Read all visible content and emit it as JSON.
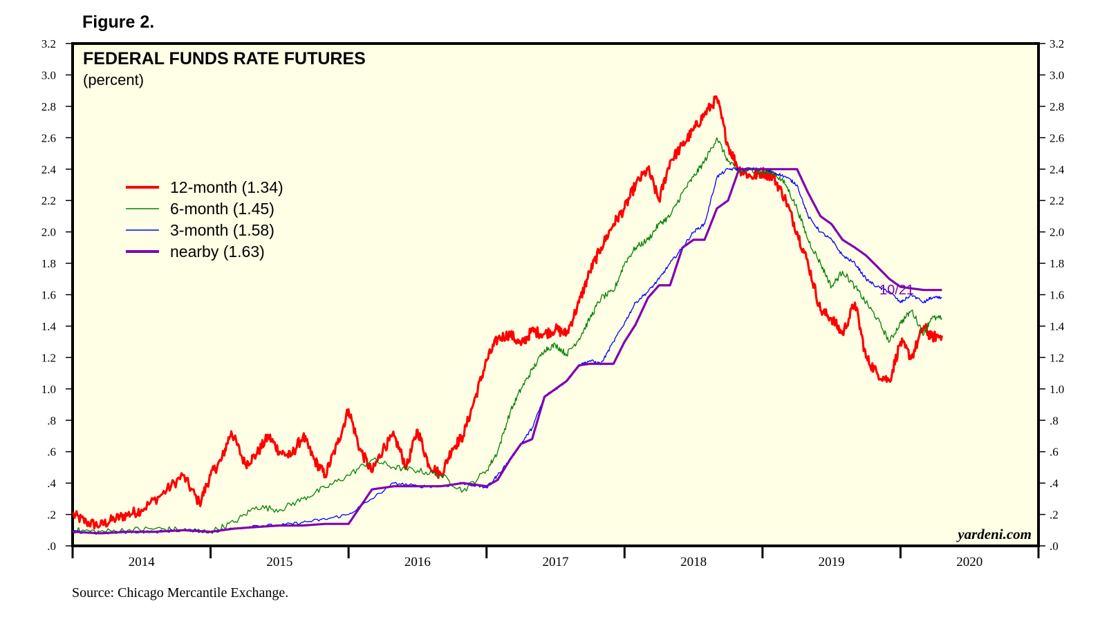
{
  "figure_label": "Figure 2.",
  "source": "Source: Chicago Mercantile Exchange.",
  "chart_data": {
    "type": "line",
    "title": "FEDERAL FUNDS RATE FUTURES",
    "subtitle": "(percent)",
    "xlabel": "",
    "ylabel": "percent",
    "ylim": [
      0,
      3.2
    ],
    "xlim": [
      2013.5,
      2020.5
    ],
    "grid": false,
    "y_ticks": [
      0,
      0.2,
      0.4,
      0.6,
      0.8,
      1.0,
      1.2,
      1.4,
      1.6,
      1.8,
      2.0,
      2.2,
      2.4,
      2.6,
      2.8,
      3.0,
      3.2
    ],
    "y_tick_labels": [
      ".0",
      ".2",
      ".4",
      ".6",
      ".8",
      "1.0",
      "1.2",
      "1.4",
      "1.6",
      "1.8",
      "2.0",
      "2.2",
      "2.4",
      "2.6",
      "2.8",
      "3.0",
      "3.2"
    ],
    "x_categories": [
      "2014",
      "2015",
      "2016",
      "2017",
      "2018",
      "2019",
      "2020"
    ],
    "annotation": "10/21",
    "watermark": "yardeni.com",
    "background_color": "#ffffe6",
    "legend_position": "middle-left",
    "series": [
      {
        "name": "12-month (1.34)",
        "color": "#ff0000",
        "x": [
          2013.5,
          2013.6,
          2013.7,
          2013.8,
          2013.9,
          2014.0,
          2014.15,
          2014.3,
          2014.42,
          2014.5,
          2014.58,
          2014.65,
          2014.75,
          2014.83,
          2014.92,
          2015.0,
          2015.08,
          2015.17,
          2015.25,
          2015.33,
          2015.42,
          2015.5,
          2015.58,
          2015.67,
          2015.75,
          2015.83,
          2015.92,
          2016.0,
          2016.08,
          2016.17,
          2016.25,
          2016.33,
          2016.42,
          2016.5,
          2016.58,
          2016.67,
          2016.75,
          2016.83,
          2016.92,
          2017.0,
          2017.08,
          2017.17,
          2017.25,
          2017.33,
          2017.42,
          2017.5,
          2017.58,
          2017.67,
          2017.75,
          2017.83,
          2017.92,
          2018.0,
          2018.08,
          2018.17,
          2018.25,
          2018.33,
          2018.42,
          2018.5,
          2018.58,
          2018.67,
          2018.75,
          2018.83,
          2018.92,
          2019.0,
          2019.08,
          2019.17,
          2019.25,
          2019.33,
          2019.42,
          2019.5,
          2019.58,
          2019.67,
          2019.72,
          2019.8
        ],
        "values": [
          0.2,
          0.15,
          0.13,
          0.17,
          0.2,
          0.23,
          0.33,
          0.45,
          0.27,
          0.45,
          0.55,
          0.73,
          0.52,
          0.58,
          0.7,
          0.6,
          0.57,
          0.7,
          0.55,
          0.45,
          0.65,
          0.87,
          0.62,
          0.47,
          0.62,
          0.7,
          0.5,
          0.74,
          0.52,
          0.45,
          0.62,
          0.7,
          0.95,
          1.18,
          1.32,
          1.35,
          1.28,
          1.37,
          1.35,
          1.38,
          1.35,
          1.55,
          1.75,
          1.9,
          2.05,
          2.15,
          2.3,
          2.4,
          2.2,
          2.45,
          2.55,
          2.65,
          2.75,
          2.85,
          2.55,
          2.4,
          2.35,
          2.38,
          2.35,
          2.2,
          2.0,
          1.8,
          1.5,
          1.45,
          1.35,
          1.55,
          1.2,
          1.1,
          1.05,
          1.3,
          1.2,
          1.4,
          1.33,
          1.34
        ]
      },
      {
        "name": "6-month (1.45)",
        "color": "#008000",
        "x": [
          2013.5,
          2013.7,
          2013.9,
          2014.1,
          2014.3,
          2014.5,
          2014.67,
          2014.83,
          2015.0,
          2015.17,
          2015.33,
          2015.5,
          2015.67,
          2015.83,
          2016.0,
          2016.17,
          2016.33,
          2016.5,
          2016.58,
          2016.67,
          2016.75,
          2016.83,
          2016.92,
          2017.0,
          2017.08,
          2017.17,
          2017.25,
          2017.33,
          2017.42,
          2017.5,
          2017.58,
          2017.67,
          2017.75,
          2017.83,
          2017.92,
          2018.0,
          2018.08,
          2018.17,
          2018.25,
          2018.33,
          2018.42,
          2018.5,
          2018.58,
          2018.67,
          2018.75,
          2018.83,
          2018.92,
          2019.0,
          2019.08,
          2019.17,
          2019.25,
          2019.33,
          2019.42,
          2019.5,
          2019.58,
          2019.67,
          2019.72,
          2019.8
        ],
        "values": [
          0.1,
          0.09,
          0.1,
          0.11,
          0.1,
          0.09,
          0.15,
          0.25,
          0.23,
          0.3,
          0.37,
          0.45,
          0.55,
          0.5,
          0.48,
          0.45,
          0.35,
          0.48,
          0.6,
          0.85,
          1.0,
          1.12,
          1.25,
          1.28,
          1.22,
          1.32,
          1.45,
          1.58,
          1.62,
          1.8,
          1.9,
          1.95,
          2.05,
          2.1,
          2.25,
          2.35,
          2.45,
          2.6,
          2.45,
          2.38,
          2.4,
          2.38,
          2.38,
          2.3,
          2.15,
          1.95,
          1.8,
          1.65,
          1.75,
          1.65,
          1.55,
          1.45,
          1.3,
          1.42,
          1.5,
          1.35,
          1.45,
          1.45
        ]
      },
      {
        "name": "3-month (1.58)",
        "color": "#0000ff",
        "x": [
          2013.5,
          2013.7,
          2013.9,
          2014.1,
          2014.3,
          2014.5,
          2014.67,
          2014.83,
          2015.0,
          2015.17,
          2015.33,
          2015.5,
          2015.67,
          2015.83,
          2016.0,
          2016.17,
          2016.33,
          2016.5,
          2016.58,
          2016.67,
          2016.75,
          2016.83,
          2016.92,
          2017.0,
          2017.08,
          2017.17,
          2017.25,
          2017.33,
          2017.42,
          2017.5,
          2017.58,
          2017.67,
          2017.75,
          2017.83,
          2017.92,
          2018.0,
          2018.08,
          2018.17,
          2018.25,
          2018.33,
          2018.42,
          2018.5,
          2018.58,
          2018.67,
          2018.75,
          2018.83,
          2018.92,
          2019.0,
          2019.08,
          2019.17,
          2019.25,
          2019.33,
          2019.42,
          2019.5,
          2019.58,
          2019.67,
          2019.72,
          2019.8
        ],
        "values": [
          0.09,
          0.08,
          0.09,
          0.09,
          0.1,
          0.09,
          0.11,
          0.13,
          0.13,
          0.15,
          0.17,
          0.2,
          0.3,
          0.4,
          0.38,
          0.38,
          0.4,
          0.37,
          0.45,
          0.55,
          0.65,
          0.75,
          0.95,
          1.0,
          1.05,
          1.15,
          1.18,
          1.16,
          1.3,
          1.42,
          1.55,
          1.62,
          1.7,
          1.8,
          1.9,
          2.0,
          2.05,
          2.35,
          2.4,
          2.4,
          2.4,
          2.4,
          2.38,
          2.35,
          2.3,
          2.1,
          2.0,
          1.95,
          1.85,
          1.8,
          1.7,
          1.65,
          1.62,
          1.55,
          1.6,
          1.55,
          1.58,
          1.58
        ]
      },
      {
        "name": "nearby (1.63)",
        "color": "#7f00b2",
        "x": [
          2013.5,
          2013.7,
          2013.9,
          2014.1,
          2014.3,
          2014.5,
          2014.67,
          2014.83,
          2015.0,
          2015.17,
          2015.33,
          2015.5,
          2015.67,
          2015.83,
          2016.0,
          2016.17,
          2016.33,
          2016.5,
          2016.58,
          2016.67,
          2016.75,
          2016.83,
          2016.92,
          2017.0,
          2017.08,
          2017.17,
          2017.25,
          2017.33,
          2017.42,
          2017.5,
          2017.58,
          2017.67,
          2017.75,
          2017.83,
          2017.92,
          2018.0,
          2018.08,
          2018.17,
          2018.25,
          2018.33,
          2018.42,
          2018.5,
          2018.58,
          2018.67,
          2018.75,
          2018.83,
          2018.92,
          2019.0,
          2019.08,
          2019.17,
          2019.25,
          2019.33,
          2019.42,
          2019.5,
          2019.58,
          2019.67,
          2019.72,
          2019.8
        ],
        "values": [
          0.09,
          0.08,
          0.09,
          0.09,
          0.1,
          0.09,
          0.11,
          0.12,
          0.13,
          0.13,
          0.14,
          0.14,
          0.36,
          0.38,
          0.38,
          0.38,
          0.4,
          0.38,
          0.42,
          0.55,
          0.65,
          0.68,
          0.95,
          1.0,
          1.05,
          1.15,
          1.16,
          1.16,
          1.16,
          1.3,
          1.41,
          1.58,
          1.66,
          1.66,
          1.9,
          1.95,
          1.95,
          2.15,
          2.2,
          2.4,
          2.4,
          2.4,
          2.4,
          2.4,
          2.4,
          2.25,
          2.1,
          2.05,
          1.95,
          1.9,
          1.85,
          1.78,
          1.7,
          1.65,
          1.64,
          1.63,
          1.63,
          1.63
        ]
      }
    ]
  }
}
